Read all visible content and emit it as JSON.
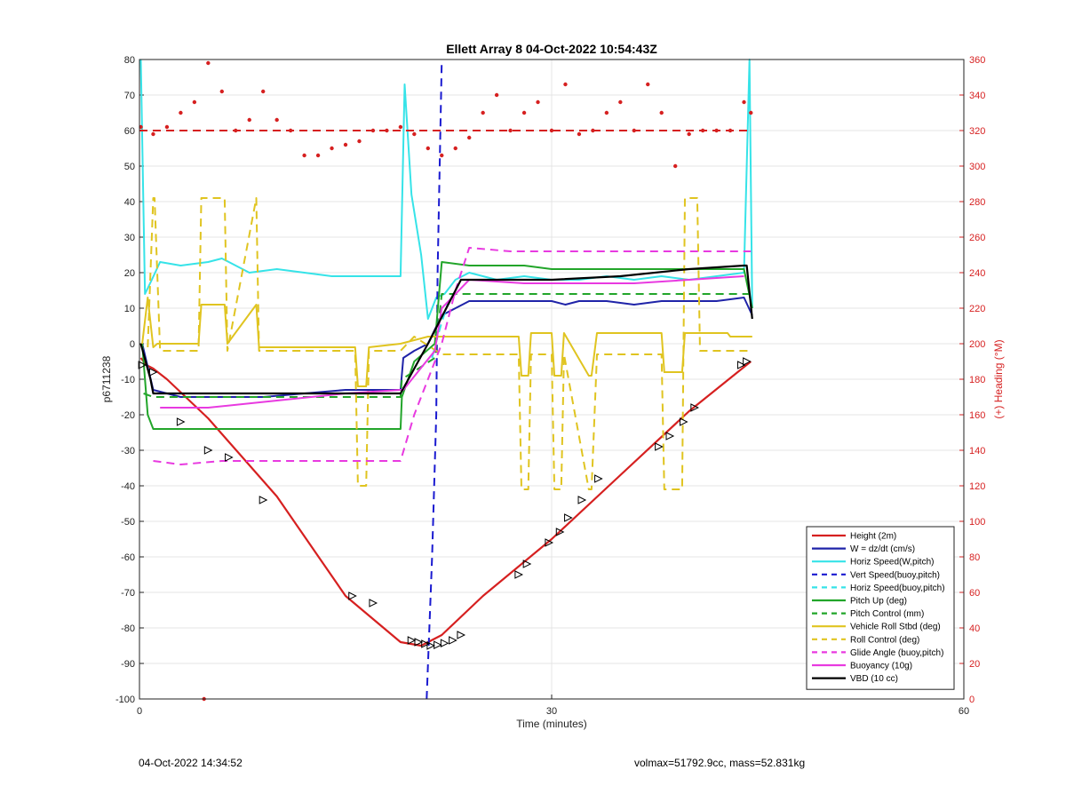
{
  "chart_data": {
    "type": "line",
    "title": "Ellett Array 8 04-Oct-2022 10:54:43Z",
    "xlabel": "Time (minutes)",
    "ylabel": "p6711238",
    "y2label": "(+) Heading (°M)",
    "xlim": [
      0,
      60
    ],
    "ylim": [
      -100,
      80
    ],
    "y2lim": [
      0,
      360
    ],
    "xticks": [
      0,
      30,
      60
    ],
    "yticks": [
      -100,
      -90,
      -80,
      -70,
      -60,
      -50,
      -40,
      -30,
      -20,
      -10,
      0,
      10,
      20,
      30,
      40,
      50,
      60,
      70,
      80
    ],
    "y2ticks": [
      0,
      20,
      40,
      60,
      80,
      100,
      120,
      140,
      160,
      180,
      200,
      220,
      240,
      260,
      280,
      300,
      320,
      340,
      360
    ],
    "grid": true,
    "legend_position": "bottom-right",
    "colors": {
      "height": "#d62020",
      "w": "#1f23a8",
      "horiz": "#36e3e8",
      "vert_buoy": "#1a1ad0",
      "pitch": "#22a52a",
      "roll": "#e0c420",
      "glide": "#e83ae0",
      "buoyancy": "#e83ae0",
      "vbd": "#000000",
      "heading": "#d62020",
      "axis_right": "#d62020"
    },
    "series": [
      {
        "name": "Height (2m)",
        "key": "height",
        "color": "#d62020",
        "dash": "solid",
        "x": [
          0.1,
          0.5,
          1,
          2,
          5,
          10,
          15,
          19,
          20.5,
          22,
          25,
          30,
          35,
          40,
          44.5
        ],
        "y": [
          -4,
          -6,
          -7,
          -10,
          -21,
          -43,
          -71,
          -84,
          -85,
          -82,
          -71,
          -55,
          -37,
          -19,
          -5
        ]
      },
      {
        "name": "W = dz/dt (cm/s)",
        "key": "w",
        "color": "#1f23a8",
        "dash": "solid",
        "x": [
          0.2,
          1,
          3,
          6,
          9,
          12,
          15,
          19,
          19.2,
          20,
          21,
          22,
          24,
          26,
          28,
          30,
          31,
          32,
          34,
          36,
          38,
          40,
          42,
          44,
          44.6
        ],
        "y": [
          0,
          -13,
          -15,
          -15,
          -15,
          -14,
          -13,
          -13,
          -4,
          -2,
          0,
          8,
          12,
          12,
          12,
          12,
          11,
          12,
          12,
          11,
          12,
          12,
          12,
          13,
          8
        ]
      },
      {
        "name": "Horiz Speed(W,pitch)",
        "key": "horiz",
        "color": "#36e3e8",
        "dash": "solid",
        "x": [
          0.1,
          0.4,
          0.9,
          1.5,
          3,
          5,
          6,
          8,
          10,
          12,
          14,
          16,
          19,
          19.3,
          19.8,
          20.5,
          21,
          21.6,
          22.2,
          23,
          24,
          26,
          28,
          30,
          32,
          34,
          36,
          38,
          40,
          42,
          44,
          44.4,
          44.6
        ],
        "y": [
          80,
          14,
          18,
          23,
          22,
          23,
          24,
          20,
          21,
          20,
          19,
          19,
          19,
          73,
          42,
          25,
          7,
          13,
          14,
          18,
          20,
          18,
          19,
          18,
          18,
          19,
          18,
          19,
          18,
          19,
          20,
          80,
          10
        ]
      },
      {
        "name": "Vert Speed(buoy,pitch)",
        "key": "vert_buoy",
        "color": "#1a1ad0",
        "dash": "dashed",
        "x": [
          20.9,
          21.3,
          21.6,
          21.7,
          22.0
        ],
        "y": [
          -100,
          -60,
          -20,
          20,
          80
        ]
      },
      {
        "name": "Horiz Speed(buoy,pitch)",
        "key": "horiz_buoy",
        "color": "#36e3e8",
        "dash": "dashed",
        "x": [
          21.3,
          21.7,
          22,
          22.5
        ],
        "y": [
          -4,
          2,
          6,
          12
        ]
      },
      {
        "name": "Pitch Up (deg)",
        "key": "pitch",
        "color": "#22a52a",
        "dash": "solid",
        "x": [
          0.2,
          0.6,
          1,
          3,
          6,
          9,
          12,
          15,
          19,
          19.1,
          20,
          21.5,
          22,
          24,
          26,
          28,
          30,
          32,
          34,
          36,
          38,
          40,
          42,
          44,
          44.6
        ],
        "y": [
          0,
          -20,
          -24,
          -24,
          -24,
          -24,
          -24,
          -24,
          -24,
          -15,
          -5,
          0,
          23,
          22,
          22,
          22,
          21,
          21,
          21,
          21,
          21,
          21,
          21,
          21,
          10
        ]
      },
      {
        "name": "Pitch Control (mm)",
        "key": "pitch_ctrl",
        "color": "#22a52a",
        "dash": "dashed",
        "x": [
          0.3,
          1,
          19,
          19.1,
          21.5,
          22,
          44.6
        ],
        "y": [
          -14,
          -15,
          -15,
          -10,
          -4,
          14,
          14
        ]
      },
      {
        "name": "Vehicle Roll Stbd (deg)",
        "key": "roll",
        "color": "#e0c420",
        "dash": "solid",
        "x": [
          0.2,
          0.6,
          1,
          1.3,
          1.5,
          4.3,
          4.5,
          6.2,
          6.4,
          8.5,
          8.7,
          15.7,
          15.9,
          16.5,
          16.7,
          19,
          21,
          22,
          27.6,
          27.8,
          28.3,
          28.5,
          30,
          30.2,
          30.7,
          30.9,
          32.7,
          32.9,
          33.3,
          33.5,
          38,
          38.2,
          39.5,
          39.7,
          42.8,
          43,
          44.6
        ],
        "y": [
          0,
          13,
          -1,
          0,
          0,
          0,
          11,
          11,
          0,
          11,
          -1,
          -1,
          -12,
          -12,
          -1,
          0,
          2,
          2,
          2,
          -9,
          -9,
          3,
          3,
          -9,
          -9,
          3,
          -9,
          -9,
          3,
          3,
          3,
          -8,
          -8,
          3,
          3,
          2,
          2
        ]
      },
      {
        "name": "Roll Control (deg)",
        "key": "roll_ctrl",
        "color": "#e0c420",
        "dash": "dashed",
        "x": [
          0.6,
          1,
          1.1,
          1.5,
          4.3,
          4.5,
          6.2,
          6.4,
          8.5,
          8.7,
          15.7,
          15.9,
          16.5,
          16.7,
          19,
          20,
          22,
          27.6,
          27.8,
          28.3,
          28.5,
          30,
          30.2,
          30.7,
          30.9,
          32.7,
          32.9,
          33.3,
          33.5,
          38,
          38.2,
          39.5,
          39.7,
          40.6,
          40.8,
          44.6
        ],
        "y": [
          -1,
          41,
          41,
          -2,
          -2,
          41,
          41,
          -2,
          41,
          -2,
          -2,
          -40,
          -40,
          -2,
          -2,
          2,
          -3,
          -3,
          -41,
          -41,
          -3,
          -3,
          -41,
          -41,
          -3,
          -41,
          -41,
          -3,
          -3,
          -3,
          -41,
          -41,
          41,
          41,
          -2,
          -2
        ]
      },
      {
        "name": "Glide Angle (buoy,pitch)",
        "key": "glide",
        "color": "#e83ae0",
        "dash": "dashed",
        "x": [
          1,
          3,
          6,
          10,
          14,
          19,
          20,
          22,
          23,
          24,
          27,
          30,
          33,
          36,
          39,
          42,
          44.5
        ],
        "y": [
          -33,
          -34,
          -33,
          -33,
          -33,
          -33,
          -20,
          0,
          15,
          27,
          26,
          26,
          26,
          26,
          26,
          26,
          26
        ]
      },
      {
        "name": "Buoyancy (10g)",
        "key": "buoyancy",
        "color": "#e83ae0",
        "dash": "solid",
        "x": [
          1.5,
          5,
          10,
          15,
          19,
          19.2,
          21.5,
          22,
          24,
          28,
          32,
          36,
          40,
          44
        ],
        "y": [
          -18,
          -18,
          -16,
          -14,
          -13,
          -13,
          -2,
          10,
          18,
          17,
          17,
          17,
          18,
          19
        ]
      },
      {
        "name": "VBD (10 cc)",
        "key": "vbd",
        "color": "#000000",
        "dash": "solid",
        "x": [
          0.1,
          0.8,
          1,
          5,
          10,
          15,
          19,
          21,
          23.4,
          25,
          30,
          35,
          40,
          44,
          44.2,
          44.6
        ],
        "y": [
          0,
          -10,
          -14,
          -14,
          -14,
          -14,
          -14,
          0,
          18,
          18,
          18,
          19,
          21,
          22,
          22,
          7
        ]
      },
      {
        "name": "",
        "key": "heading",
        "color": "#d62020",
        "dash": "dotted",
        "axis": "right",
        "x": [
          0.1,
          1,
          2,
          3,
          4,
          5,
          6,
          7,
          8,
          9,
          10,
          11,
          12,
          13,
          14,
          15,
          16,
          17,
          18,
          19,
          20,
          21,
          22,
          23,
          24,
          25,
          26,
          27,
          28,
          29,
          30,
          31,
          32,
          33,
          34,
          35,
          36,
          37,
          38,
          39,
          40,
          41,
          42,
          43,
          44,
          44.5
        ],
        "y": [
          322,
          318,
          322,
          330,
          336,
          358,
          342,
          320,
          326,
          342,
          326,
          320,
          306,
          306,
          310,
          312,
          314,
          320,
          320,
          322,
          318,
          310,
          306,
          310,
          316,
          330,
          340,
          320,
          330,
          336,
          320,
          346,
          318,
          320,
          330,
          336,
          320,
          346,
          330,
          300,
          318,
          320,
          320,
          320,
          336,
          330
        ]
      },
      {
        "name": "",
        "key": "heading_ref",
        "color": "#d62020",
        "dash": "dashed",
        "axis": "right",
        "x": [
          0,
          44.6
        ],
        "y": [
          320,
          320
        ]
      }
    ],
    "markers": {
      "x": [
        0.2,
        1.0,
        3.0,
        5.0,
        6.5,
        9.0,
        15.5,
        17.0,
        19.8,
        20.3,
        20.8,
        21.2,
        21.7,
        22.2,
        22.8,
        23.4,
        27.6,
        28.2,
        29.8,
        30.6,
        31.2,
        32.2,
        33.4,
        37.8,
        38.6,
        39.6,
        40.4,
        43.8,
        44.2
      ],
      "y": [
        -6,
        -8,
        -22,
        -30,
        -32,
        -44,
        -71,
        -73,
        -83.5,
        -84,
        -84.5,
        -85,
        -84.8,
        -84.3,
        -83.5,
        -82,
        -65,
        -62,
        -56,
        -53,
        -49,
        -44,
        -38,
        -29,
        -26,
        -22,
        -18,
        -6,
        -5
      ]
    },
    "stray_point": {
      "x": 4.7,
      "y": -100
    }
  },
  "footer": {
    "left": "04-Oct-2022 14:34:52",
    "right": "volmax=51792.9cc, mass=52.831kg"
  }
}
